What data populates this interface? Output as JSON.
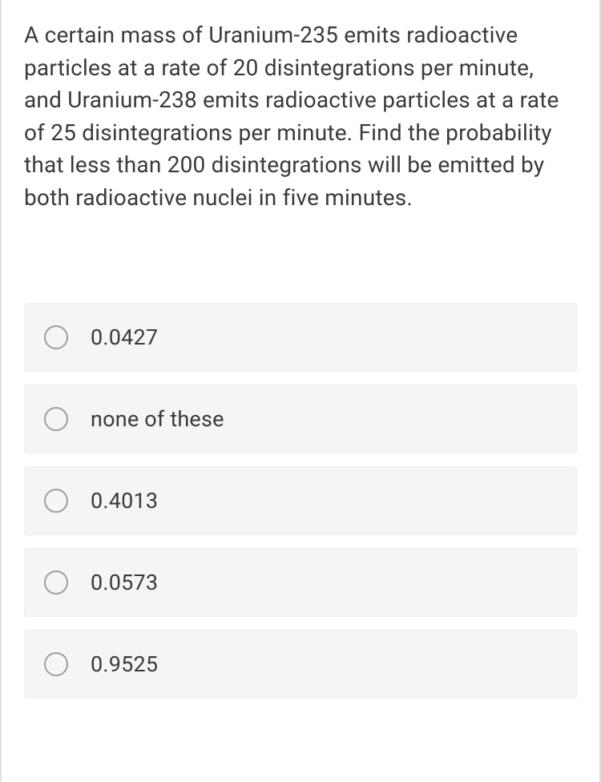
{
  "question": {
    "text": "A certain mass of Uranium-235 emits radioactive particles at a rate of 20 disintegrations per minute, and Uranium-238 emits radioactive particles at a rate of 25 disintegrations per minute. Find the probability that less than 200 disintegrations will be emitted by both radioactive nuclei in five minutes."
  },
  "options": [
    {
      "label": "0.0427"
    },
    {
      "label": "none of these"
    },
    {
      "label": "0.4013"
    },
    {
      "label": "0.0573"
    },
    {
      "label": "0.9525"
    }
  ],
  "styling": {
    "background_color": "#ffffff",
    "option_background_color": "#f5f5f5",
    "option_border_color": "#eeeeee",
    "text_color": "#3a3a3a",
    "radio_border_color": "#9e9e9e",
    "container_border_color": "#e0e0e0",
    "question_fontsize": 28,
    "option_fontsize": 27,
    "radio_size": 30
  }
}
